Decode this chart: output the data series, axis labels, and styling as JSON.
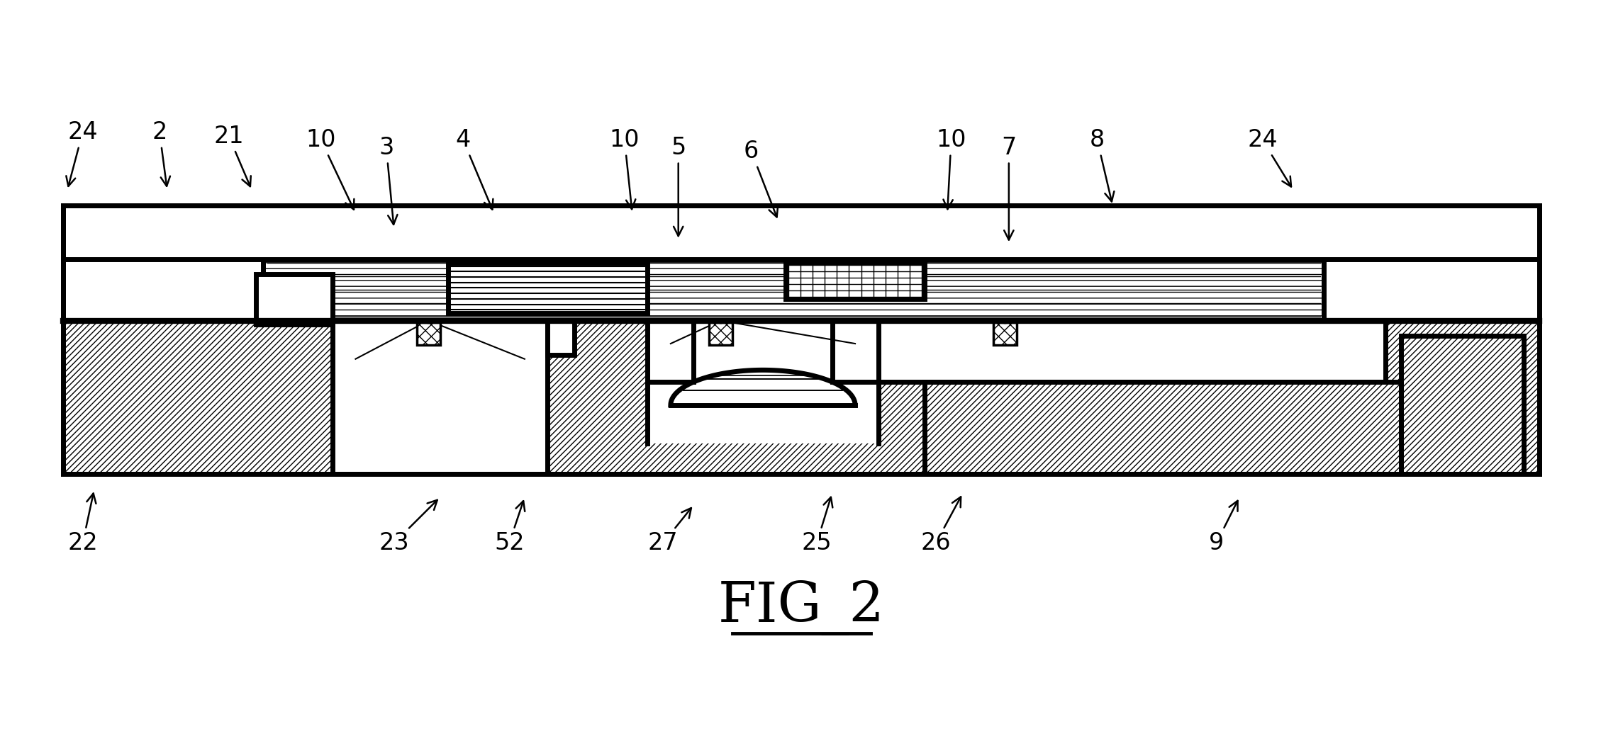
{
  "title": "FIG_2",
  "title_fontsize": 56,
  "figsize": [
    22.82,
    10.46
  ],
  "dpi": 100,
  "bg_color": "#ffffff",
  "lw_thin": 1.5,
  "lw_med": 2.5,
  "lw_thick": 5.0,
  "label_fontsize": 24,
  "annotations": [
    [
      "24",
      105,
      720,
      85,
      660
    ],
    [
      "2",
      205,
      720,
      215,
      660
    ],
    [
      "21",
      295,
      715,
      325,
      660
    ],
    [
      "10",
      415,
      710,
      460,
      630
    ],
    [
      "3",
      500,
      700,
      510,
      610
    ],
    [
      "4",
      600,
      710,
      640,
      630
    ],
    [
      "10",
      810,
      710,
      820,
      630
    ],
    [
      "5",
      880,
      700,
      880,
      595
    ],
    [
      "6",
      975,
      695,
      1010,
      620
    ],
    [
      "10",
      1235,
      710,
      1230,
      630
    ],
    [
      "7",
      1310,
      700,
      1310,
      590
    ],
    [
      "8",
      1425,
      710,
      1445,
      640
    ],
    [
      "24",
      1640,
      710,
      1680,
      660
    ],
    [
      "22",
      105,
      185,
      120,
      270
    ],
    [
      "23",
      510,
      185,
      570,
      260
    ],
    [
      "52",
      660,
      185,
      680,
      260
    ],
    [
      "27",
      860,
      185,
      900,
      250
    ],
    [
      "25",
      1060,
      185,
      1080,
      265
    ],
    [
      "26",
      1215,
      185,
      1250,
      265
    ],
    [
      "9",
      1580,
      185,
      1610,
      260
    ]
  ]
}
